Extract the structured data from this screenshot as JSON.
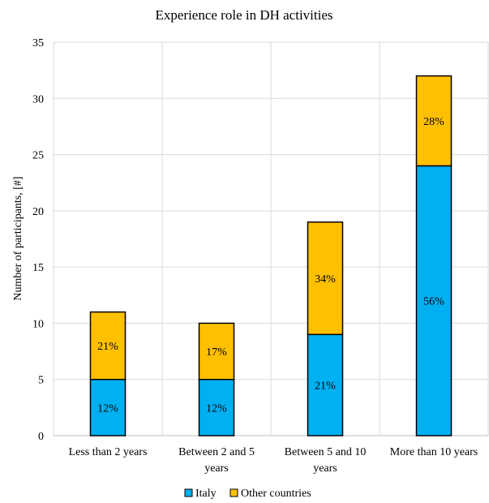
{
  "colors": {
    "italy": "#00B0F0",
    "other": "#FFC000",
    "grid": "#d9d9d9",
    "axis": "#bfbfbf"
  },
  "chart_data": {
    "type": "bar",
    "stacked": true,
    "title": "Experience role in DH activities",
    "ylabel": "Number of participants, [#]",
    "xlabel": "",
    "ylim": [
      0,
      35
    ],
    "ytick_step": 5,
    "yticks": [
      "0",
      "5",
      "10",
      "15",
      "20",
      "25",
      "30",
      "35"
    ],
    "grid": "horizontal and vertical",
    "legend_position": "bottom",
    "categories": [
      [
        "Less than 2 years"
      ],
      [
        "Between 2 and 5",
        "years"
      ],
      [
        "Between 5 and 10",
        "years"
      ],
      [
        "More than 10 years"
      ]
    ],
    "series": [
      {
        "name": "Italy",
        "color_key": "italy",
        "values": [
          5,
          5,
          9,
          24
        ],
        "labels": [
          "12%",
          "12%",
          "21%",
          "56%"
        ]
      },
      {
        "name": "Other countries",
        "color_key": "other",
        "values": [
          6,
          5,
          10,
          8
        ],
        "labels": [
          "21%",
          "17%",
          "34%",
          "28%"
        ]
      }
    ]
  }
}
